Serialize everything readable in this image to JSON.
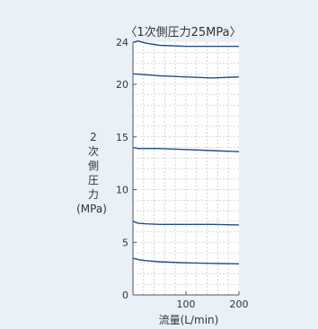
{
  "chart_data": {
    "type": "line",
    "title": "〈1次側圧力25MPa〉",
    "xlabel": "流量(L/min)",
    "ylabel_chars": [
      "2",
      "次",
      "側",
      "圧",
      "力"
    ],
    "ylabel_unit": "(MPa)",
    "xlim": [
      0,
      200
    ],
    "ylim": [
      0,
      24
    ],
    "x_ticks": [
      100,
      200
    ],
    "y_ticks": [
      0,
      5,
      10,
      15,
      20,
      24
    ],
    "grid": true,
    "series": [
      {
        "x": [
          0,
          10,
          25,
          50,
          100,
          150,
          200
        ],
        "y": [
          24.0,
          24.1,
          23.9,
          23.7,
          23.6,
          23.6,
          23.6
        ]
      },
      {
        "x": [
          0,
          25,
          50,
          100,
          150,
          200
        ],
        "y": [
          21.0,
          20.9,
          20.8,
          20.7,
          20.6,
          20.7
        ]
      },
      {
        "x": [
          0,
          10,
          25,
          50,
          100,
          150,
          200
        ],
        "y": [
          14.0,
          13.9,
          13.9,
          13.9,
          13.8,
          13.7,
          13.6
        ]
      },
      {
        "x": [
          0,
          10,
          25,
          50,
          100,
          150,
          200
        ],
        "y": [
          7.0,
          6.8,
          6.75,
          6.7,
          6.7,
          6.7,
          6.65
        ]
      },
      {
        "x": [
          0,
          10,
          25,
          50,
          100,
          150,
          200
        ],
        "y": [
          3.5,
          3.35,
          3.25,
          3.15,
          3.05,
          3.0,
          2.95
        ]
      }
    ]
  },
  "style": {
    "panel_bg": "#eaf0f7",
    "plot_bg": "#ffffff",
    "line_color": "#1f4e8c",
    "grid_color": "#b8b8b8",
    "axis_color": "#555555"
  }
}
